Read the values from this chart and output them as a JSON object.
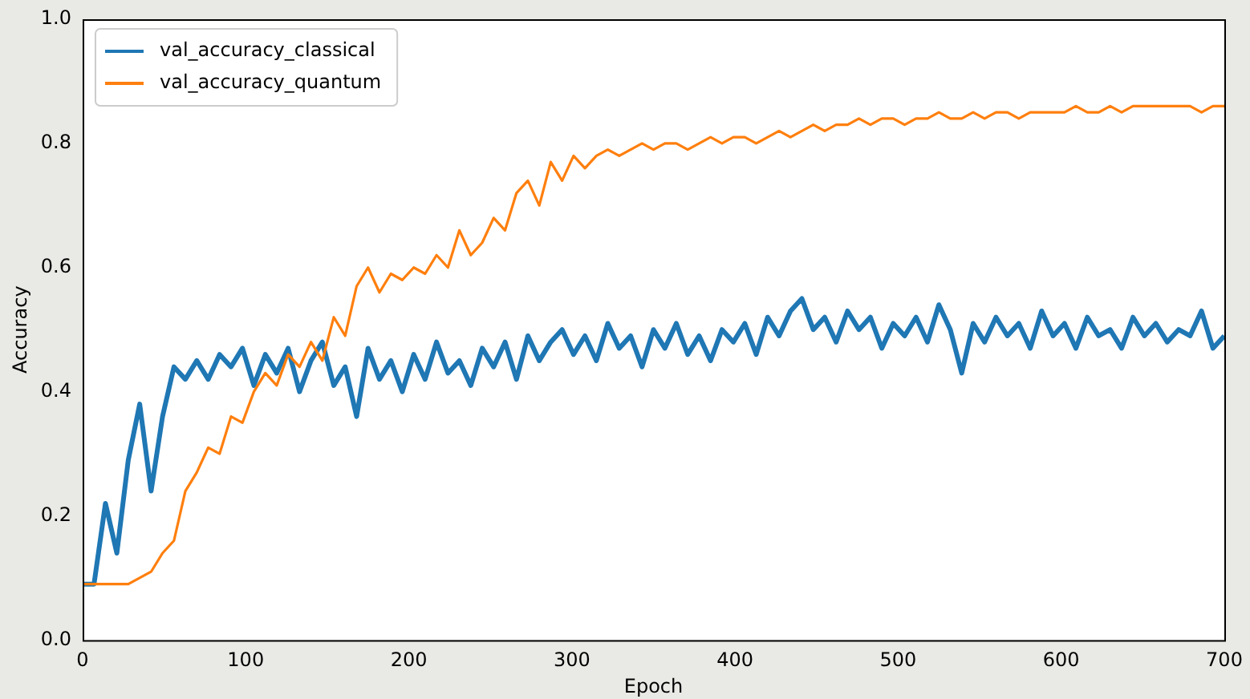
{
  "chart_data": {
    "type": "line",
    "xlabel": "Epoch",
    "ylabel": "Accuracy",
    "x": [
      0,
      7,
      14,
      21,
      28,
      35,
      42,
      49,
      56,
      63,
      70,
      77,
      84,
      91,
      98,
      105,
      112,
      119,
      126,
      133,
      140,
      147,
      154,
      161,
      168,
      175,
      182,
      189,
      196,
      203,
      210,
      217,
      224,
      231,
      238,
      245,
      252,
      259,
      266,
      273,
      280,
      287,
      294,
      301,
      308,
      315,
      322,
      329,
      336,
      343,
      350,
      357,
      364,
      371,
      378,
      385,
      392,
      399,
      406,
      413,
      420,
      427,
      434,
      441,
      448,
      455,
      462,
      469,
      476,
      483,
      490,
      497,
      504,
      511,
      518,
      525,
      532,
      539,
      546,
      553,
      560,
      567,
      574,
      581,
      588,
      595,
      602,
      609,
      616,
      623,
      630,
      637,
      644,
      651,
      658,
      665,
      672,
      679,
      686,
      693,
      700
    ],
    "series": [
      {
        "name": "val_accuracy_classical",
        "color": "#1f77b4",
        "values": [
          0.09,
          0.09,
          0.22,
          0.14,
          0.29,
          0.38,
          0.24,
          0.36,
          0.44,
          0.42,
          0.45,
          0.42,
          0.46,
          0.44,
          0.47,
          0.41,
          0.46,
          0.43,
          0.47,
          0.4,
          0.45,
          0.48,
          0.41,
          0.44,
          0.36,
          0.47,
          0.42,
          0.45,
          0.4,
          0.46,
          0.42,
          0.48,
          0.43,
          0.45,
          0.41,
          0.47,
          0.44,
          0.48,
          0.42,
          0.49,
          0.45,
          0.48,
          0.5,
          0.46,
          0.49,
          0.45,
          0.51,
          0.47,
          0.49,
          0.44,
          0.5,
          0.47,
          0.51,
          0.46,
          0.49,
          0.45,
          0.5,
          0.48,
          0.51,
          0.46,
          0.52,
          0.49,
          0.53,
          0.55,
          0.5,
          0.52,
          0.48,
          0.53,
          0.5,
          0.52,
          0.47,
          0.51,
          0.49,
          0.52,
          0.48,
          0.54,
          0.5,
          0.43,
          0.51,
          0.48,
          0.52,
          0.49,
          0.51,
          0.47,
          0.53,
          0.49,
          0.51,
          0.47,
          0.52,
          0.49,
          0.5,
          0.47,
          0.52,
          0.49,
          0.51,
          0.48,
          0.5,
          0.49,
          0.53,
          0.47,
          0.49
        ]
      },
      {
        "name": "val_accuracy_quantum",
        "color": "#ff7f0e",
        "values": [
          0.09,
          0.09,
          0.09,
          0.09,
          0.09,
          0.1,
          0.11,
          0.14,
          0.16,
          0.24,
          0.27,
          0.31,
          0.3,
          0.36,
          0.35,
          0.4,
          0.43,
          0.41,
          0.46,
          0.44,
          0.48,
          0.45,
          0.52,
          0.49,
          0.57,
          0.6,
          0.56,
          0.59,
          0.58,
          0.6,
          0.59,
          0.62,
          0.6,
          0.66,
          0.62,
          0.64,
          0.68,
          0.66,
          0.72,
          0.74,
          0.7,
          0.77,
          0.74,
          0.78,
          0.76,
          0.78,
          0.79,
          0.78,
          0.79,
          0.8,
          0.79,
          0.8,
          0.8,
          0.79,
          0.8,
          0.81,
          0.8,
          0.81,
          0.81,
          0.8,
          0.81,
          0.82,
          0.81,
          0.82,
          0.83,
          0.82,
          0.83,
          0.83,
          0.84,
          0.83,
          0.84,
          0.84,
          0.83,
          0.84,
          0.84,
          0.85,
          0.84,
          0.84,
          0.85,
          0.84,
          0.85,
          0.85,
          0.84,
          0.85,
          0.85,
          0.85,
          0.85,
          0.86,
          0.85,
          0.85,
          0.86,
          0.85,
          0.86,
          0.86,
          0.86,
          0.86,
          0.86,
          0.86,
          0.85,
          0.86,
          0.86
        ]
      }
    ],
    "xlim": [
      0,
      700
    ],
    "xticks": [
      0,
      100,
      200,
      300,
      400,
      500,
      600,
      700
    ],
    "ylim": [
      0,
      1
    ],
    "yticks": [
      {
        "value": 0,
        "label": "0.0"
      },
      0.2,
      0.4,
      0.6,
      0.8,
      {
        "value": 1,
        "label": "1.0"
      }
    ],
    "grid": false,
    "legend": "top left",
    "marker": "none",
    "line_style": "solid"
  }
}
